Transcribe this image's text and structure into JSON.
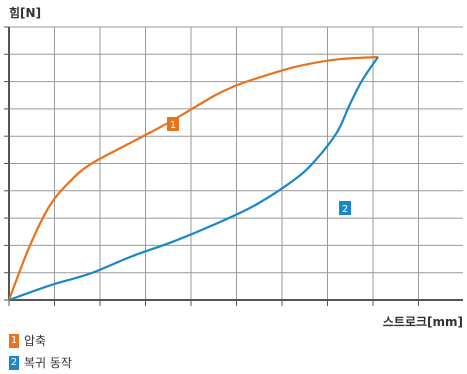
{
  "chart_data": {
    "type": "line",
    "ylabel": "힘[N]",
    "xlabel": "스트로크[mm]",
    "xlim": [
      0,
      10
    ],
    "ylim": [
      0,
      10
    ],
    "grid": true,
    "series": [
      {
        "name": "압축",
        "badge": "1",
        "color": "#e8731e",
        "x": [
          0,
          0.5,
          1.0,
          1.5,
          2.0,
          3.0,
          4.0,
          5.0,
          5.5,
          6.0,
          7.0,
          8.0,
          9.0
        ],
        "y": [
          0,
          2.2,
          3.9,
          4.9,
          5.6,
          6.5,
          7.4,
          8.4,
          8.8,
          9.1,
          9.6,
          9.9,
          10.0
        ]
      },
      {
        "name": "복귀 동작",
        "badge": "2",
        "color": "#1a87c9",
        "x": [
          0,
          1.0,
          2.0,
          3.0,
          4.0,
          5.0,
          6.0,
          7.0,
          7.5,
          8.0,
          8.3,
          8.6,
          9.0
        ],
        "y": [
          0,
          0.6,
          1.1,
          1.8,
          2.4,
          3.1,
          3.9,
          5.0,
          5.8,
          6.9,
          8.0,
          9.0,
          10.0
        ]
      }
    ]
  }
}
